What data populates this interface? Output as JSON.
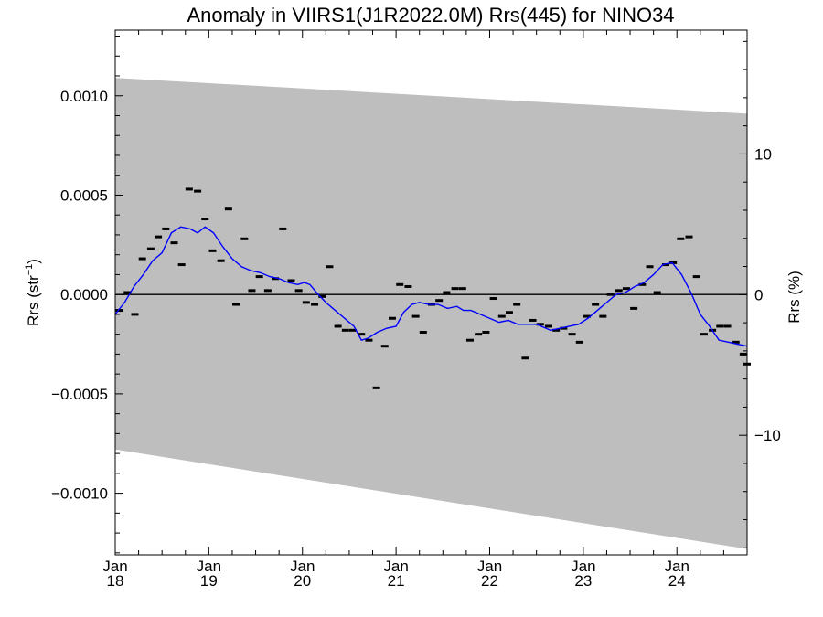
{
  "chart_data": {
    "type": "scatter",
    "title": "Anomaly in VIIRS1(J1R2022.0M) Rrs(445) for NINO34",
    "ylabel": {
      "base": "Rrs (str",
      "sup": "−1",
      "close": ")"
    },
    "y2label": "Rrs (%)",
    "xlim": [
      2018.0,
      2024.75
    ],
    "ylim": [
      -0.00131,
      0.00133
    ],
    "y2lim": [
      -18.5,
      18.8
    ],
    "x_ticks": [
      {
        "value": 2018,
        "month": "Jan",
        "year": "18"
      },
      {
        "value": 2019,
        "month": "Jan",
        "year": "19"
      },
      {
        "value": 2020,
        "month": "Jan",
        "year": "20"
      },
      {
        "value": 2021,
        "month": "Jan",
        "year": "21"
      },
      {
        "value": 2022,
        "month": "Jan",
        "year": "22"
      },
      {
        "value": 2023,
        "month": "Jan",
        "year": "23"
      },
      {
        "value": 2024,
        "month": "Jan",
        "year": "24"
      }
    ],
    "y_ticks": [
      {
        "value": 0.001,
        "label": "0.0010"
      },
      {
        "value": 0.0005,
        "label": "0.0005"
      },
      {
        "value": 0.0,
        "label": "0.0000"
      },
      {
        "value": -0.0005,
        "label": "−0.0005"
      },
      {
        "value": -0.001,
        "label": "−0.0010"
      }
    ],
    "y2_ticks": [
      {
        "value": 10,
        "label": "10"
      },
      {
        "value": 0,
        "label": "0"
      },
      {
        "value": -10,
        "label": "−10"
      }
    ],
    "zero_line": true,
    "uncertainty_band": {
      "x": [
        2018.0,
        2024.75
      ],
      "upper": [
        0.00109,
        0.00091
      ],
      "lower": [
        -0.00078,
        -0.00128
      ],
      "color": "#bebebe"
    },
    "series": [
      {
        "values": [
          [
            2018.04,
            -8e-05
          ],
          [
            2018.13,
            1e-05
          ],
          [
            2018.21,
            -0.0001
          ],
          [
            2018.29,
            0.00018
          ],
          [
            2018.38,
            0.00023
          ],
          [
            2018.46,
            0.00029
          ],
          [
            2018.54,
            0.00033
          ],
          [
            2018.63,
            0.00026
          ],
          [
            2018.71,
            0.00015
          ],
          [
            2018.79,
            0.00053
          ],
          [
            2018.88,
            0.00052
          ],
          [
            2018.96,
            0.00038
          ],
          [
            2019.04,
            0.00022
          ],
          [
            2019.13,
            0.00017
          ],
          [
            2019.21,
            0.00043
          ],
          [
            2019.29,
            -5e-05
          ],
          [
            2019.38,
            0.00028
          ],
          [
            2019.46,
            2e-05
          ],
          [
            2019.54,
            9e-05
          ],
          [
            2019.63,
            2e-05
          ],
          [
            2019.71,
            8e-05
          ],
          [
            2019.79,
            0.00033
          ],
          [
            2019.88,
            7e-05
          ],
          [
            2019.96,
            2e-05
          ],
          [
            2020.04,
            -4e-05
          ],
          [
            2020.13,
            -5e-05
          ],
          [
            2020.21,
            -1e-05
          ],
          [
            2020.29,
            0.00014
          ],
          [
            2020.38,
            -0.00016
          ],
          [
            2020.46,
            -0.00018
          ],
          [
            2020.54,
            -0.00018
          ],
          [
            2020.63,
            -0.0002
          ],
          [
            2020.71,
            -0.00023
          ],
          [
            2020.79,
            -0.00047
          ],
          [
            2020.88,
            -0.00026
          ],
          [
            2020.96,
            -0.00012
          ],
          [
            2021.04,
            5e-05
          ],
          [
            2021.13,
            4e-05
          ],
          [
            2021.21,
            -0.00011
          ],
          [
            2021.29,
            -0.00019
          ],
          [
            2021.38,
            -5e-05
          ],
          [
            2021.46,
            -3e-05
          ],
          [
            2021.54,
            1e-05
          ],
          [
            2021.63,
            3e-05
          ],
          [
            2021.71,
            3e-05
          ],
          [
            2021.79,
            -0.00023
          ],
          [
            2021.88,
            -0.0002
          ],
          [
            2021.96,
            -0.00019
          ],
          [
            2022.04,
            -2e-05
          ],
          [
            2022.13,
            -0.00011
          ],
          [
            2022.21,
            -9e-05
          ],
          [
            2022.29,
            -5e-05
          ],
          [
            2022.38,
            -0.00032
          ],
          [
            2022.46,
            -0.00013
          ],
          [
            2022.54,
            -0.00015
          ],
          [
            2022.63,
            -0.00016
          ],
          [
            2022.71,
            -0.00018
          ],
          [
            2022.79,
            -0.00017
          ],
          [
            2022.88,
            -0.0002
          ],
          [
            2022.96,
            -0.00024
          ],
          [
            2023.04,
            -0.00011
          ],
          [
            2023.13,
            -5e-05
          ],
          [
            2023.21,
            -0.00011
          ],
          [
            2023.29,
            0.0
          ],
          [
            2023.38,
            2e-05
          ],
          [
            2023.46,
            3e-05
          ],
          [
            2023.54,
            -7e-05
          ],
          [
            2023.63,
            5e-05
          ],
          [
            2023.71,
            0.00014
          ],
          [
            2023.79,
            1e-05
          ],
          [
            2023.88,
            0.00015
          ],
          [
            2023.96,
            0.00016
          ],
          [
            2024.04,
            0.00028
          ],
          [
            2024.13,
            0.00029
          ],
          [
            2024.21,
            9e-05
          ],
          [
            2024.29,
            -0.0002
          ],
          [
            2024.38,
            -0.00018
          ],
          [
            2024.46,
            -0.00016
          ],
          [
            2024.54,
            -0.00016
          ],
          [
            2024.63,
            -0.00024
          ],
          [
            2024.71,
            -0.0003
          ],
          [
            2024.75,
            -0.00035
          ]
        ],
        "color": "#000000",
        "marker": "dash"
      },
      {
        "type": "line",
        "values": [
          [
            2018.0,
            -0.0001
          ],
          [
            2018.1,
            -4e-05
          ],
          [
            2018.2,
            4e-05
          ],
          [
            2018.3,
            0.0001
          ],
          [
            2018.4,
            0.00017
          ],
          [
            2018.5,
            0.00021
          ],
          [
            2018.6,
            0.00031
          ],
          [
            2018.7,
            0.00034
          ],
          [
            2018.8,
            0.00033
          ],
          [
            2018.88,
            0.00031
          ],
          [
            2018.96,
            0.00034
          ],
          [
            2019.05,
            0.00031
          ],
          [
            2019.15,
            0.00024
          ],
          [
            2019.25,
            0.00018
          ],
          [
            2019.35,
            0.00014
          ],
          [
            2019.45,
            0.00012
          ],
          [
            2019.55,
            0.00011
          ],
          [
            2019.65,
            9e-05
          ],
          [
            2019.75,
            8e-05
          ],
          [
            2019.85,
            6e-05
          ],
          [
            2019.95,
            5e-05
          ],
          [
            2020.02,
            6e-05
          ],
          [
            2020.08,
            5e-05
          ],
          [
            2020.15,
            1e-05
          ],
          [
            2020.25,
            -4e-05
          ],
          [
            2020.35,
            -8e-05
          ],
          [
            2020.45,
            -0.00012
          ],
          [
            2020.55,
            -0.00016
          ],
          [
            2020.63,
            -0.00023
          ],
          [
            2020.7,
            -0.00022
          ],
          [
            2020.8,
            -0.00019
          ],
          [
            2020.9,
            -0.00017
          ],
          [
            2021.0,
            -0.00016
          ],
          [
            2021.08,
            -9e-05
          ],
          [
            2021.17,
            -5e-05
          ],
          [
            2021.25,
            -4e-05
          ],
          [
            2021.35,
            -5e-05
          ],
          [
            2021.45,
            -5e-05
          ],
          [
            2021.55,
            -7e-05
          ],
          [
            2021.65,
            -6e-05
          ],
          [
            2021.72,
            -8e-05
          ],
          [
            2021.8,
            -8e-05
          ],
          [
            2021.9,
            -0.0001
          ],
          [
            2022.0,
            -0.00012
          ],
          [
            2022.1,
            -0.00014
          ],
          [
            2022.2,
            -0.00013
          ],
          [
            2022.3,
            -0.00015
          ],
          [
            2022.4,
            -0.00015
          ],
          [
            2022.5,
            -0.00015
          ],
          [
            2022.6,
            -0.00017
          ],
          [
            2022.65,
            -0.00018
          ],
          [
            2022.75,
            -0.00017
          ],
          [
            2022.85,
            -0.00016
          ],
          [
            2022.95,
            -0.00015
          ],
          [
            2023.05,
            -0.00012
          ],
          [
            2023.15,
            -8e-05
          ],
          [
            2023.25,
            -4e-05
          ],
          [
            2023.35,
            0.0
          ],
          [
            2023.45,
            1e-05
          ],
          [
            2023.55,
            4e-05
          ],
          [
            2023.65,
            6e-05
          ],
          [
            2023.75,
            0.0001
          ],
          [
            2023.85,
            0.00015
          ],
          [
            2023.95,
            0.00016
          ],
          [
            2024.05,
            0.0001
          ],
          [
            2024.15,
            1e-05
          ],
          [
            2024.25,
            -0.0001
          ],
          [
            2024.35,
            -0.00016
          ],
          [
            2024.45,
            -0.00023
          ],
          [
            2024.55,
            -0.00024
          ],
          [
            2024.65,
            -0.00025
          ],
          [
            2024.75,
            -0.00026
          ]
        ],
        "color": "#0000ff"
      }
    ]
  }
}
